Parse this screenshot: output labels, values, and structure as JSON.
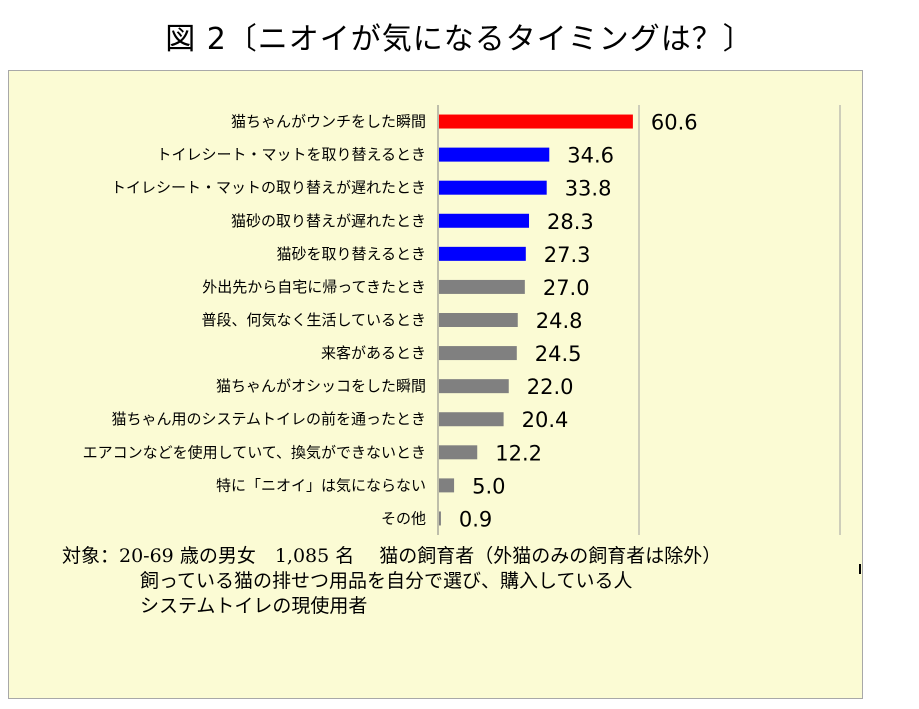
{
  "title": "図 2〔ニオイが気になるタイミングは？〕",
  "chart_data": {
    "type": "bar",
    "orientation": "horizontal",
    "categories": [
      "猫ちゃんがウンチをした瞬間",
      "トイレシート・マットを取り替えるとき",
      "トイレシート・マットの取り替えが遅れたとき",
      "猫砂の取り替えが遅れたとき",
      "猫砂を取り替えるとき",
      "外出先から自宅に帰ってきたとき",
      "普段、何気なく生活しているとき",
      "来客があるとき",
      "猫ちゃんがオシッコをした瞬間",
      "猫ちゃん用のシステムトイレの前を通ったとき",
      "エアコンなどを使用していて、換気ができないとき",
      "特に「ニオイ」は気にならない",
      "その他"
    ],
    "values": [
      60.6,
      34.6,
      33.8,
      28.3,
      27.3,
      27.0,
      24.8,
      24.5,
      22.0,
      20.4,
      12.2,
      5.0,
      0.9
    ],
    "value_labels": [
      "60.6",
      "34.6",
      "33.8",
      "28.3",
      "27.3",
      "27.0",
      "24.8",
      "24.5",
      "22.0",
      "20.4",
      "12.2",
      "5.0",
      "0.9"
    ],
    "bar_colors": [
      "#ff0000",
      "#0000ff",
      "#0000ff",
      "#0000ff",
      "#0000ff",
      "#808080",
      "#808080",
      "#808080",
      "#808080",
      "#808080",
      "#808080",
      "#808080",
      "#808080"
    ],
    "xlim": [
      0,
      125
    ],
    "gridlines": [
      0,
      62.5,
      125
    ],
    "grid": true
  },
  "note": {
    "line1": "対象：20-69 歳の男女　1,085 名　 猫の飼育者（外猫のみの飼育者は除外）",
    "line2": "飼っている猫の排せつ用品を自分で選び、購入している人",
    "line3": "システムトイレの現使用者"
  }
}
